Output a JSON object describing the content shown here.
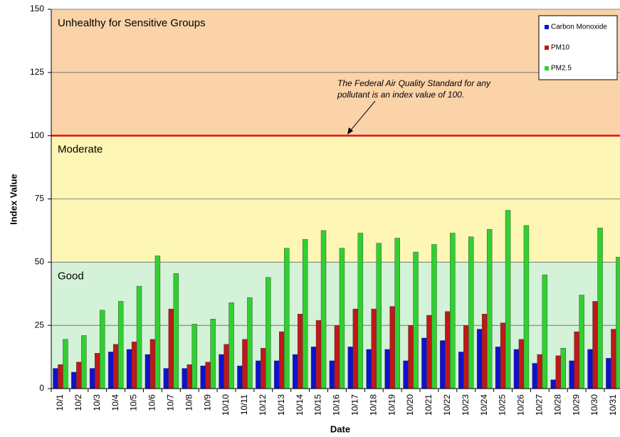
{
  "chart_data": {
    "type": "bar",
    "y_label": "Index Value",
    "x_label": "Date",
    "categories": [
      "10/1",
      "10/2",
      "10/3",
      "10/4",
      "10/5",
      "10/6",
      "10/7",
      "10/8",
      "10/9",
      "10/10",
      "10/11",
      "10/12",
      "10/13",
      "10/14",
      "10/15",
      "10/16",
      "10/17",
      "10/18",
      "10/19",
      "10/20",
      "10/21",
      "10/22",
      "10/23",
      "10/24",
      "10/25",
      "10/26",
      "10/27",
      "10/28",
      "10/29",
      "10/30",
      "10/31"
    ],
    "series": [
      {
        "name": "Carbon Monoxide",
        "color": "#1010d0",
        "values": [
          8,
          6.5,
          8,
          14.5,
          15.5,
          13.5,
          8,
          8,
          9,
          13.5,
          9,
          11,
          11,
          13.5,
          16.5,
          11,
          16.5,
          15.5,
          15.5,
          11,
          20,
          19,
          14.5,
          23.5,
          16.5,
          15.5,
          10,
          3.5,
          11,
          15.5,
          12
        ]
      },
      {
        "name": "PM10",
        "color": "#c01818",
        "values": [
          9.5,
          10.5,
          14,
          17.5,
          18.5,
          19.5,
          31.5,
          9.5,
          10.5,
          17.5,
          19.5,
          16,
          22.5,
          29.5,
          27,
          25,
          31.5,
          31.5,
          32.5,
          25,
          29,
          30.5,
          25,
          29.5,
          26,
          19.5,
          13.5,
          13,
          22.5,
          34.5,
          23.5
        ]
      },
      {
        "name": "PM2.5",
        "color": "#30d030",
        "values": [
          19.5,
          21,
          31,
          34.5,
          40.5,
          52.5,
          45.5,
          25.5,
          27.5,
          34,
          36,
          44,
          55.5,
          59,
          62.5,
          55.5,
          61.5,
          57.5,
          59.5,
          54,
          57,
          61.5,
          60,
          63,
          70.5,
          64.5,
          45,
          16,
          37,
          63.5,
          52
        ]
      }
    ],
    "ylim": [
      0,
      150
    ],
    "yticks": [
      0,
      25,
      50,
      75,
      100,
      125,
      150
    ],
    "grid": true,
    "zones": [
      {
        "label": "Good",
        "from": 0,
        "to": 50,
        "color": "#d4f2d8",
        "text_color": "#2a9a2a"
      },
      {
        "label": "Moderate",
        "from": 50,
        "to": 100,
        "color": "#fdf6b4",
        "text_color": "#f0b020"
      },
      {
        "label": "Unhealthy for Sensitive Groups",
        "from": 100,
        "to": 150,
        "color": "#fbd3a8",
        "text_color": "#ee2020"
      }
    ],
    "reference_line": {
      "value": 100,
      "color": "#e01010"
    },
    "annotation": [
      "The Federal Air Quality Standard for any",
      "pollutant is an index value of 100."
    ],
    "legend": "top-right"
  }
}
